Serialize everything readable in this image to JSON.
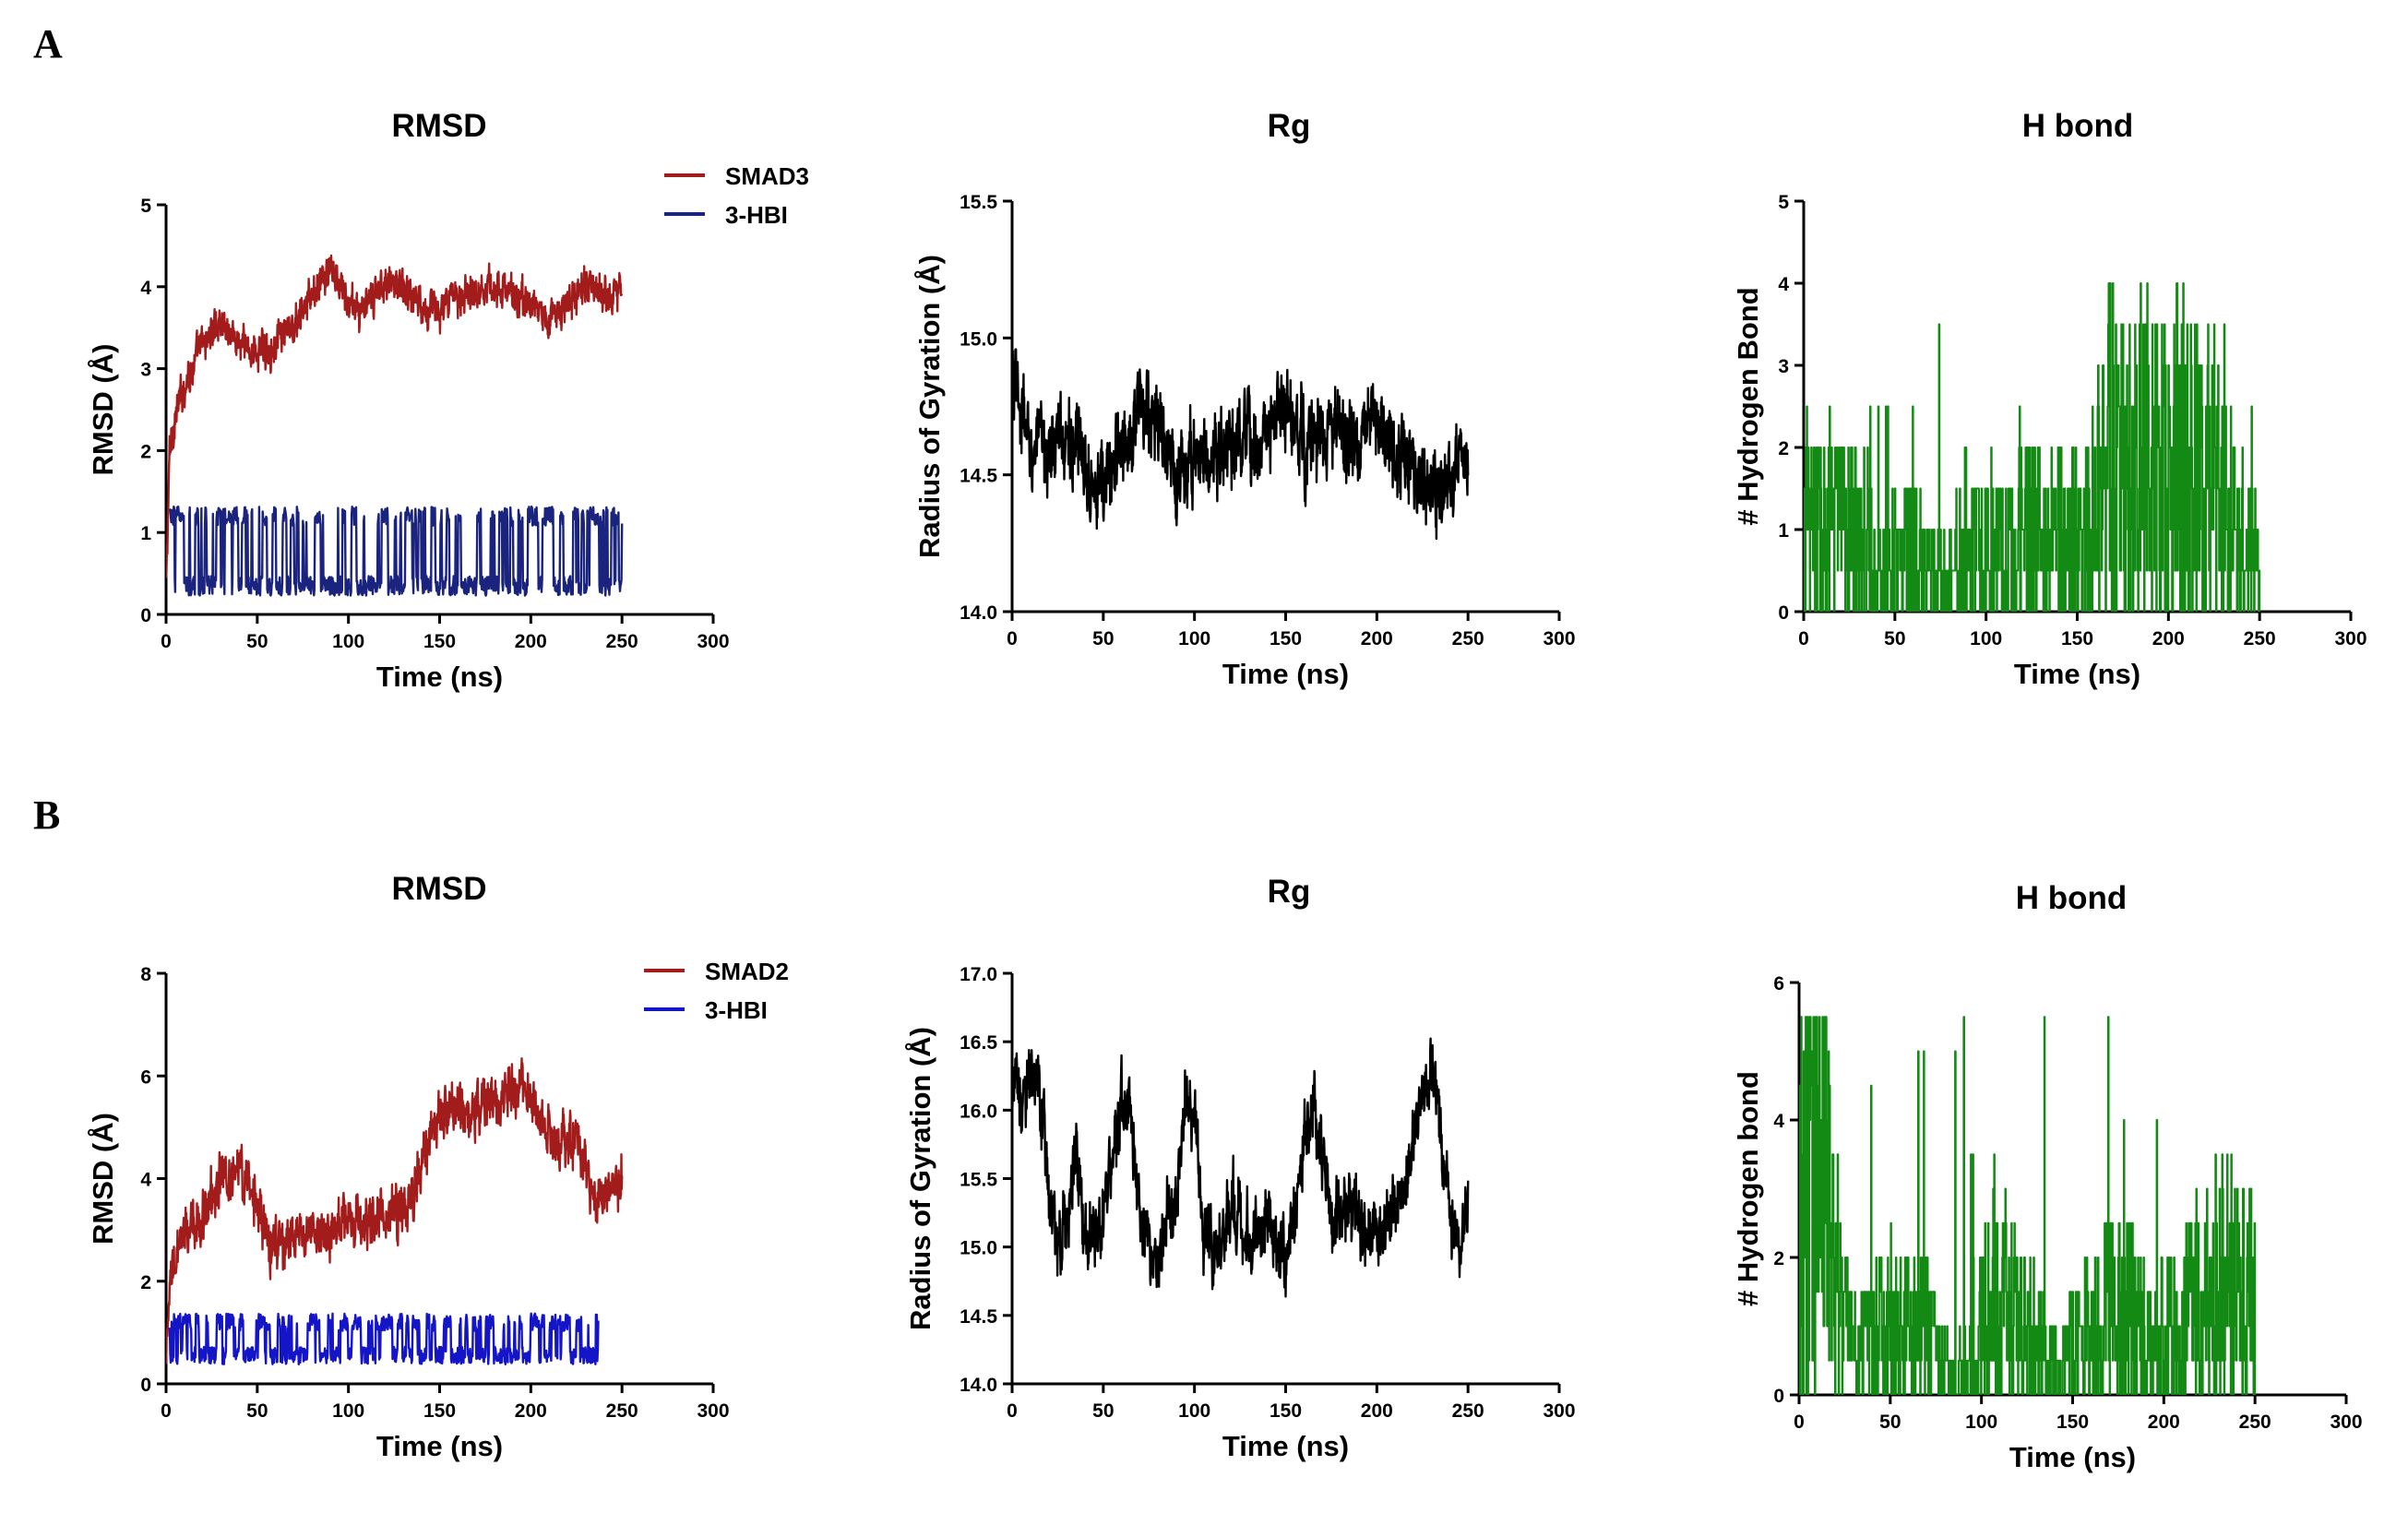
{
  "panels": [
    {
      "letter": "A"
    },
    {
      "letter": "B"
    }
  ],
  "chart_data": [
    {
      "panel": "A",
      "type": "line",
      "title": "RMSD",
      "xlabel": "Time (ns)",
      "ylabel": "RMSD (Å)",
      "xlim": [
        0,
        300
      ],
      "ylim": [
        0,
        5
      ],
      "xticks": [
        "0",
        "50",
        "100",
        "150",
        "200",
        "250",
        "300"
      ],
      "yticks": [
        "0",
        "1",
        "2",
        "3",
        "4",
        "5"
      ],
      "legend_position": "top-right",
      "series": [
        {
          "name": "SMAD3",
          "color": "#a31c1c",
          "pattern": "noisy",
          "x": [
            0,
            2,
            5,
            10,
            20,
            30,
            40,
            50,
            60,
            70,
            80,
            90,
            100,
            110,
            120,
            130,
            140,
            150,
            160,
            170,
            180,
            190,
            200,
            210,
            220,
            230,
            240,
            250
          ],
          "y": [
            0.3,
            2.0,
            2.4,
            2.8,
            3.3,
            3.6,
            3.3,
            3.2,
            3.3,
            3.5,
            3.9,
            4.2,
            3.8,
            3.7,
            4.1,
            4.0,
            3.8,
            3.7,
            3.9,
            4.0,
            4.0,
            3.9,
            3.8,
            3.6,
            3.8,
            4.0,
            3.9,
            4.0
          ],
          "noise": 0.38
        },
        {
          "name": "3-HBI",
          "color": "#1a237e",
          "pattern": "binary",
          "x_range": [
            2,
            250
          ],
          "levels": [
            0.35,
            1.2
          ],
          "noise": 0.12
        }
      ]
    },
    {
      "panel": "A",
      "type": "line",
      "title": "Rg",
      "xlabel": "Time (ns)",
      "ylabel": "Radius of Gyration (Å)",
      "xlim": [
        0,
        300
      ],
      "ylim": [
        14.0,
        15.5
      ],
      "xticks": [
        "0",
        "50",
        "100",
        "150",
        "200",
        "250",
        "300"
      ],
      "yticks": [
        "14.0",
        "14.5",
        "15.0",
        "15.5"
      ],
      "series": [
        {
          "name": "Rg",
          "color": "#000000",
          "pattern": "noisy",
          "x": [
            0,
            10,
            20,
            30,
            40,
            50,
            60,
            70,
            80,
            90,
            100,
            110,
            120,
            130,
            140,
            150,
            160,
            170,
            180,
            190,
            200,
            210,
            220,
            230,
            240,
            250
          ],
          "y": [
            14.85,
            14.6,
            14.6,
            14.65,
            14.55,
            14.45,
            14.6,
            14.75,
            14.7,
            14.45,
            14.6,
            14.55,
            14.6,
            14.6,
            14.65,
            14.75,
            14.6,
            14.65,
            14.65,
            14.6,
            14.7,
            14.55,
            14.55,
            14.45,
            14.5,
            14.55
          ],
          "noise": 0.26
        }
      ]
    },
    {
      "panel": "A",
      "type": "line",
      "title": "H bond",
      "xlabel": "Time (ns)",
      "ylabel": "# Hydrogen Bond",
      "xlim": [
        0,
        300
      ],
      "ylim": [
        0,
        5
      ],
      "xticks": [
        "0",
        "50",
        "100",
        "150",
        "200",
        "250",
        "300"
      ],
      "yticks": [
        "0",
        "1",
        "2",
        "3",
        "4",
        "5"
      ],
      "series": [
        {
          "name": "H bond",
          "color": "#138a13",
          "pattern": "spiky",
          "x_range": [
            0,
            250
          ],
          "x": [
            0,
            20,
            35,
            40,
            50,
            60,
            80,
            85,
            100,
            120,
            140,
            160,
            165,
            180,
            200,
            220,
            235,
            250
          ],
          "y": [
            1.0,
            1.0,
            0.8,
            0.3,
            0.6,
            0.7,
            0.3,
            0.8,
            0.8,
            0.9,
            0.9,
            1.0,
            1.8,
            1.7,
            1.8,
            1.6,
            1.0,
            0.5
          ],
          "max": 4.0
        }
      ]
    },
    {
      "panel": "B",
      "type": "line",
      "title": "RMSD",
      "xlabel": "Time (ns)",
      "ylabel": "RMSD (Å)",
      "xlim": [
        0,
        300
      ],
      "ylim": [
        0,
        8
      ],
      "xticks": [
        "0",
        "50",
        "100",
        "150",
        "200",
        "250",
        "300"
      ],
      "yticks": [
        "0",
        "2",
        "4",
        "6",
        "8"
      ],
      "legend_position": "top-right",
      "series": [
        {
          "name": "SMAD2",
          "color": "#a31c1c",
          "pattern": "noisy",
          "x": [
            0,
            3,
            10,
            20,
            30,
            40,
            48,
            55,
            60,
            80,
            100,
            120,
            135,
            145,
            155,
            170,
            185,
            195,
            205,
            215,
            225,
            235,
            240,
            250
          ],
          "y": [
            0.3,
            2.2,
            2.9,
            3.3,
            4.0,
            4.2,
            3.7,
            2.8,
            2.7,
            2.9,
            3.1,
            3.3,
            3.5,
            5.1,
            5.4,
            5.3,
            5.5,
            5.9,
            5.2,
            4.7,
            4.8,
            3.7,
            3.6,
            4.1
          ],
          "noise": 0.85
        },
        {
          "name": "3-HBI",
          "color": "#1515c8",
          "pattern": "binary",
          "x_range": [
            2,
            237
          ],
          "levels": [
            0.55,
            1.2
          ],
          "noise": 0.17
        }
      ]
    },
    {
      "panel": "B",
      "type": "line",
      "title": "Rg",
      "xlabel": "Time (ns)",
      "ylabel": "Radius of Gyration (Å)",
      "xlim": [
        0,
        300
      ],
      "ylim": [
        14.0,
        17.0
      ],
      "xticks": [
        "0",
        "50",
        "100",
        "150",
        "200",
        "250",
        "300"
      ],
      "yticks": [
        "14.0",
        "14.5",
        "15.0",
        "15.5",
        "16.0",
        "16.5",
        "17.0"
      ],
      "series": [
        {
          "name": "Rg",
          "color": "#000000",
          "pattern": "noisy",
          "x": [
            0,
            5,
            10,
            15,
            20,
            25,
            30,
            35,
            40,
            45,
            50,
            55,
            60,
            65,
            70,
            75,
            80,
            85,
            90,
            95,
            100,
            105,
            110,
            115,
            120,
            125,
            130,
            135,
            140,
            145,
            150,
            155,
            160,
            165,
            170,
            175,
            180,
            185,
            190,
            195,
            200,
            205,
            210,
            215,
            220,
            225,
            230,
            235,
            240,
            245,
            250
          ],
          "y": [
            16.2,
            16.1,
            16.3,
            16.1,
            15.5,
            14.9,
            15.2,
            15.8,
            15.0,
            15.1,
            15.3,
            15.6,
            16.1,
            15.9,
            15.3,
            15.0,
            14.9,
            15.2,
            15.5,
            16.0,
            15.9,
            15.2,
            14.9,
            15.1,
            15.4,
            15.2,
            15.0,
            15.1,
            15.3,
            15.0,
            15.0,
            15.3,
            15.8,
            16.1,
            15.6,
            15.3,
            15.2,
            15.4,
            15.2,
            15.1,
            15.1,
            15.2,
            15.3,
            15.5,
            15.7,
            16.1,
            16.3,
            15.8,
            15.3,
            15.0,
            15.2
          ],
          "noise": 0.45
        }
      ]
    },
    {
      "panel": "B",
      "type": "line",
      "title": "H bond",
      "xlabel": "Time (ns)",
      "ylabel": "# Hydrogen bond",
      "xlim": [
        0,
        300
      ],
      "ylim": [
        0,
        6
      ],
      "xticks": [
        "0",
        "50",
        "100",
        "150",
        "200",
        "250",
        "300"
      ],
      "yticks": [
        "0",
        "2",
        "4",
        "6"
      ],
      "series": [
        {
          "name": "H bond",
          "color": "#138a13",
          "pattern": "spiky",
          "x_range": [
            0,
            250
          ],
          "x": [
            0,
            5,
            10,
            15,
            20,
            30,
            50,
            70,
            80,
            85,
            95,
            110,
            130,
            140,
            150,
            170,
            190,
            210,
            230,
            250
          ],
          "y": [
            2.5,
            3.2,
            3.8,
            2.8,
            1.2,
            0.8,
            1.0,
            0.9,
            0.4,
            0.1,
            0.8,
            1.4,
            0.8,
            0.3,
            0.7,
            1.2,
            0.9,
            1.0,
            1.6,
            1.2
          ],
          "max": 5.5
        }
      ]
    }
  ]
}
